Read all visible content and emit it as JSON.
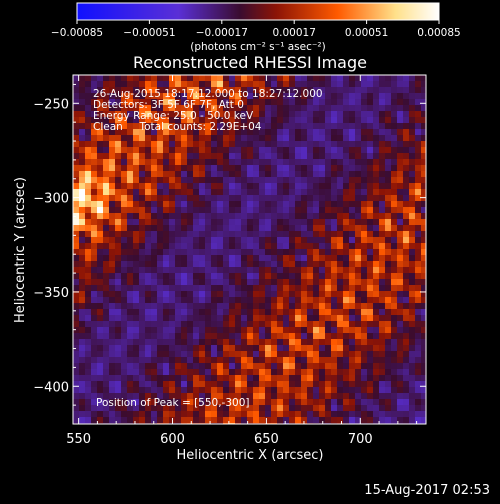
{
  "colorbar": {
    "tick_labels": [
      "-0.00085",
      "-0.00051",
      "-0.00017",
      "0.00017",
      "0.00051",
      "0.00085"
    ],
    "units": "(photons cm⁻² s⁻¹ asec⁻²)",
    "range": [
      -0.00085,
      0.00085
    ],
    "colors": [
      "#1010ff",
      "#5a2fd6",
      "#3a0c30",
      "#8c1406",
      "#ff5a00",
      "#ffe08a",
      "#ffffff"
    ]
  },
  "chart_data": {
    "type": "heatmap",
    "title": "Reconstructed RHESSI Image",
    "xlabel": "Heliocentric X (arcsec)",
    "ylabel": "Heliocentric Y (arcsec)",
    "xlim": [
      547,
      735
    ],
    "ylim": [
      -420,
      -235
    ],
    "xticks": [
      550,
      600,
      650,
      700
    ],
    "yticks": [
      -250,
      -300,
      -350,
      -400
    ],
    "xtick_labels": [
      "550",
      "600",
      "650",
      "700"
    ],
    "ytick_labels": [
      "-250",
      "-300",
      "-350",
      "-400"
    ],
    "annotations": [
      "26-Aug-2015 18:17:12.000 to 18:27:12.000",
      "Detectors: 3F 5F 6F 7F, Att 0",
      "Energy Range: 25.0 - 50.0 keV",
      "Clean     Total counts: 2.29E+04"
    ],
    "peak_label": "Position of Peak = [550,-300]",
    "peak": [
      550,
      -300
    ],
    "bands": [
      {
        "slope": 1.05,
        "intercept": -884,
        "width": 26,
        "amplitude": 0.00085
      },
      {
        "slope": 1.05,
        "intercept": -1082,
        "width": 30,
        "amplitude": 0.00075
      }
    ]
  },
  "timestamp": "15-Aug-2017 02:53"
}
